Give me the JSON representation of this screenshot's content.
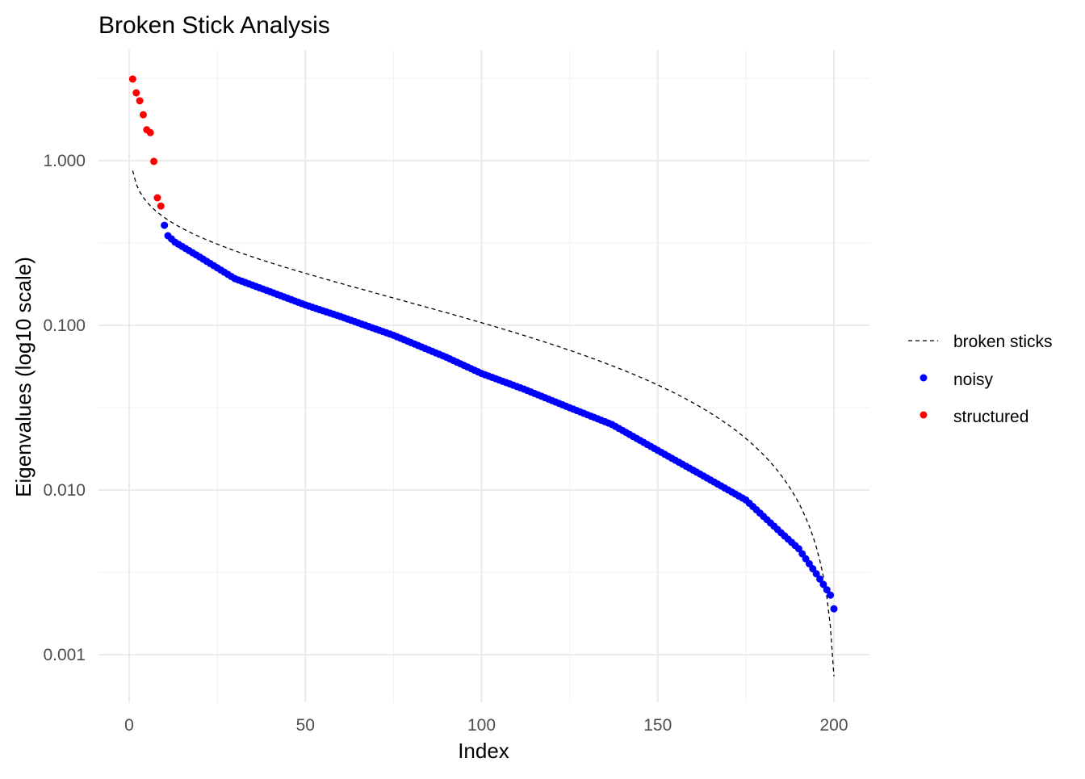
{
  "chart_data": {
    "type": "scatter",
    "title": "Broken Stick Analysis",
    "xlabel": "Index",
    "ylabel": "Eigenvalues (log10 scale)",
    "xlim": [
      0,
      200
    ],
    "ylim_log10": [
      -3.3,
      0.66
    ],
    "x_ticks": [
      0,
      50,
      100,
      150,
      200
    ],
    "x_tick_labels": [
      "0",
      "50",
      "100",
      "150",
      "200"
    ],
    "y_ticks": [
      0.001,
      0.01,
      0.1,
      1
    ],
    "y_tick_labels": [
      "0.001",
      "0.010",
      "0.100",
      "1.000"
    ],
    "grid": true,
    "legend_position": "right",
    "legend": [
      {
        "label": "broken sticks",
        "kind": "dashed-line",
        "color": "#000000"
      },
      {
        "label": "noisy",
        "kind": "point",
        "color": "#0000FF"
      },
      {
        "label": "structured",
        "kind": "point",
        "color": "#FF0000"
      }
    ],
    "series": [
      {
        "name": "structured",
        "color": "#FF0000",
        "x": [
          1,
          2,
          3,
          4,
          5,
          6,
          7,
          8,
          9
        ],
        "y": [
          3.13,
          2.58,
          2.31,
          1.9,
          1.54,
          1.48,
          0.99,
          0.595,
          0.53
        ]
      },
      {
        "name": "noisy",
        "color": "#0000FF",
        "x_range": [
          10,
          200
        ],
        "anchor_points": [
          [
            10,
            0.405
          ],
          [
            11,
            0.35
          ],
          [
            13,
            0.32
          ],
          [
            20,
            0.26
          ],
          [
            30,
            0.192
          ],
          [
            40,
            0.16
          ],
          [
            50,
            0.133
          ],
          [
            60,
            0.113
          ],
          [
            75,
            0.087
          ],
          [
            90,
            0.064
          ],
          [
            100,
            0.051
          ],
          [
            112,
            0.041
          ],
          [
            125,
            0.0316
          ],
          [
            137,
            0.025
          ],
          [
            150,
            0.0174
          ],
          [
            162,
            0.0125
          ],
          [
            175,
            0.0087
          ],
          [
            185,
            0.0055
          ],
          [
            190,
            0.0044
          ],
          [
            195,
            0.0031
          ],
          [
            199,
            0.0023
          ],
          [
            200,
            0.0019
          ]
        ]
      },
      {
        "name": "broken sticks",
        "color": "#000000",
        "n_components": 200,
        "total_variance": 29.6
      }
    ]
  }
}
